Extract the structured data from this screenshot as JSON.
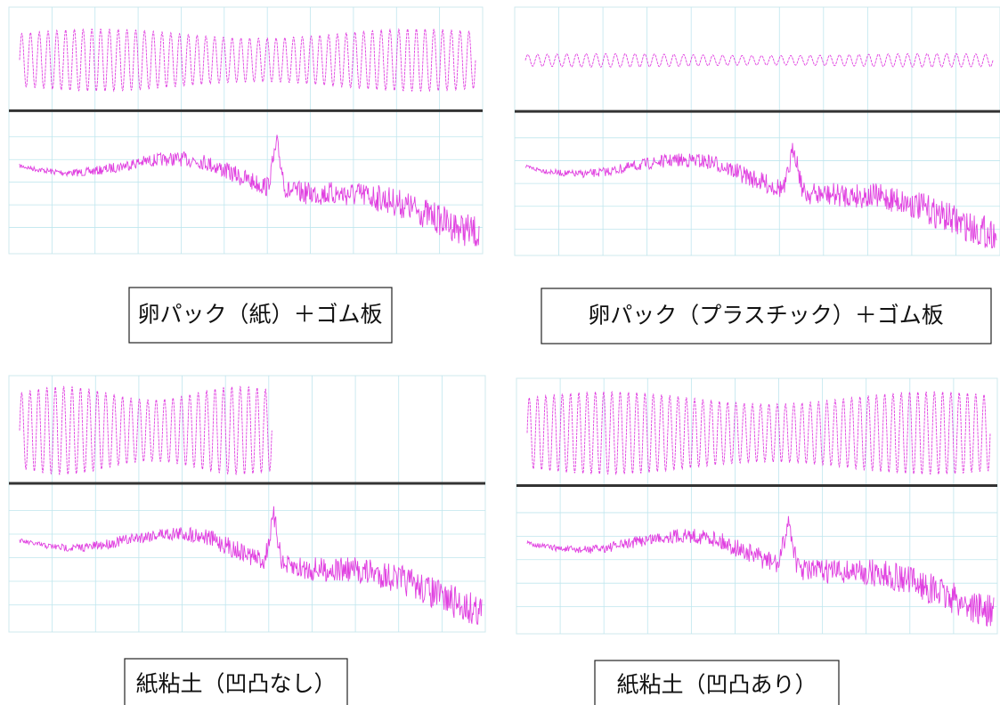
{
  "captions": [
    "卵パック（紙）＋ゴム板",
    "卵パック（プラスチック）＋ゴム板",
    "紙粘土（凹凸なし）",
    "紙粘土（凹凸あり）"
  ]
}
